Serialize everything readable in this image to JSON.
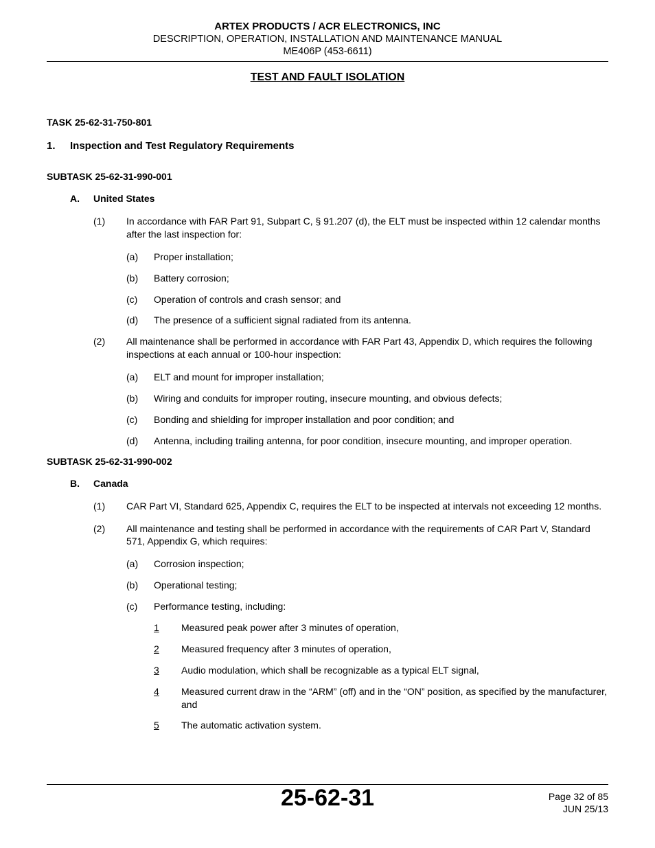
{
  "header": {
    "line1": "ARTEX PRODUCTS / ACR ELECTRONICS, INC",
    "line2": "DESCRIPTION, OPERATION, INSTALLATION AND MAINTENANCE MANUAL",
    "line3": "ME406P (453-6611)"
  },
  "section_title": "TEST AND FAULT ISOLATION",
  "task": "TASK 25-62-31-750-801",
  "heading1": {
    "num": "1.",
    "text": "Inspection and Test Regulatory Requirements"
  },
  "subtask1": "SUBTASK 25-62-31-990-001",
  "A": {
    "letter": "A.",
    "title": "United States",
    "items": [
      {
        "num": "(1)",
        "text": "In accordance with FAR Part 91, Subpart C, § 91.207 (d), the ELT must be inspected within 12 calendar months after the last inspection for:",
        "subs": [
          {
            "letter": "(a)",
            "text": "Proper installation;"
          },
          {
            "letter": "(b)",
            "text": "Battery corrosion;"
          },
          {
            "letter": "(c)",
            "text": "Operation of controls and crash sensor; and"
          },
          {
            "letter": "(d)",
            "text": "The presence of a sufficient signal radiated from its antenna."
          }
        ]
      },
      {
        "num": "(2)",
        "text": "All maintenance shall be performed in accordance with FAR Part 43, Appendix D, which requires the following inspections at each annual or 100-hour inspection:",
        "subs": [
          {
            "letter": "(a)",
            "text": "ELT and mount for improper installation;"
          },
          {
            "letter": "(b)",
            "text": "Wiring and conduits for improper routing, insecure mounting, and obvious defects;"
          },
          {
            "letter": "(c)",
            "text": "Bonding and shielding for improper installation and poor condition; and"
          },
          {
            "letter": "(d)",
            "text": "Antenna, including trailing antenna, for poor condition, insecure mounting, and improper operation."
          }
        ]
      }
    ]
  },
  "subtask2": "SUBTASK 25-62-31-990-002",
  "B": {
    "letter": "B.",
    "title": "Canada",
    "items": [
      {
        "num": "(1)",
        "text": "CAR Part VI, Standard 625, Appendix C, requires the ELT to be inspected at intervals not exceeding 12 months."
      },
      {
        "num": "(2)",
        "text": "All maintenance and testing shall be performed in accordance with the requirements of CAR Part V, Standard 571, Appendix G, which requires:",
        "subs": [
          {
            "letter": "(a)",
            "text": "Corrosion inspection;"
          },
          {
            "letter": "(b)",
            "text": "Operational testing;"
          },
          {
            "letter": "(c)",
            "text": "Performance testing, including:",
            "subs": [
              {
                "num": "1",
                "text": "Measured peak power after 3 minutes of operation,"
              },
              {
                "num": "2",
                "text": "Measured frequency after 3 minutes of operation,"
              },
              {
                "num": "3",
                "text": "Audio modulation, which shall be recognizable as a typical ELT signal,"
              },
              {
                "num": "4",
                "text": "Measured current draw in the “ARM” (off) and in the “ON” position, as specified by the manufacturer, and"
              },
              {
                "num": "5",
                "text": "The automatic activation system."
              }
            ]
          }
        ]
      }
    ]
  },
  "footer": {
    "code": "25-62-31",
    "page": "Page 32 of 85",
    "date": "JUN 25/13"
  }
}
